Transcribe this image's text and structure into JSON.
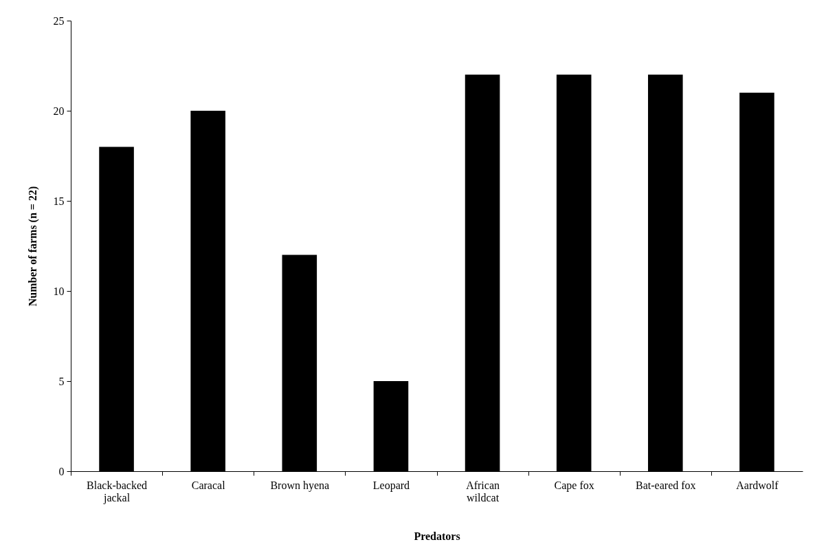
{
  "chart_data": {
    "type": "bar",
    "xlabel": "Predators",
    "ylabel": "Number of farms (n = 22)",
    "categories": [
      "Black-backed jackal",
      "Caracal",
      "Brown hyena",
      "Leopard",
      "African wildcat",
      "Cape fox",
      "Bat-eared fox",
      "Aardwolf"
    ],
    "values": [
      18,
      20,
      12,
      5,
      22,
      22,
      22,
      21
    ],
    "color": "#000000",
    "ylim": [
      0,
      25
    ],
    "yticks": [
      0,
      5,
      10,
      15,
      20,
      25
    ]
  }
}
